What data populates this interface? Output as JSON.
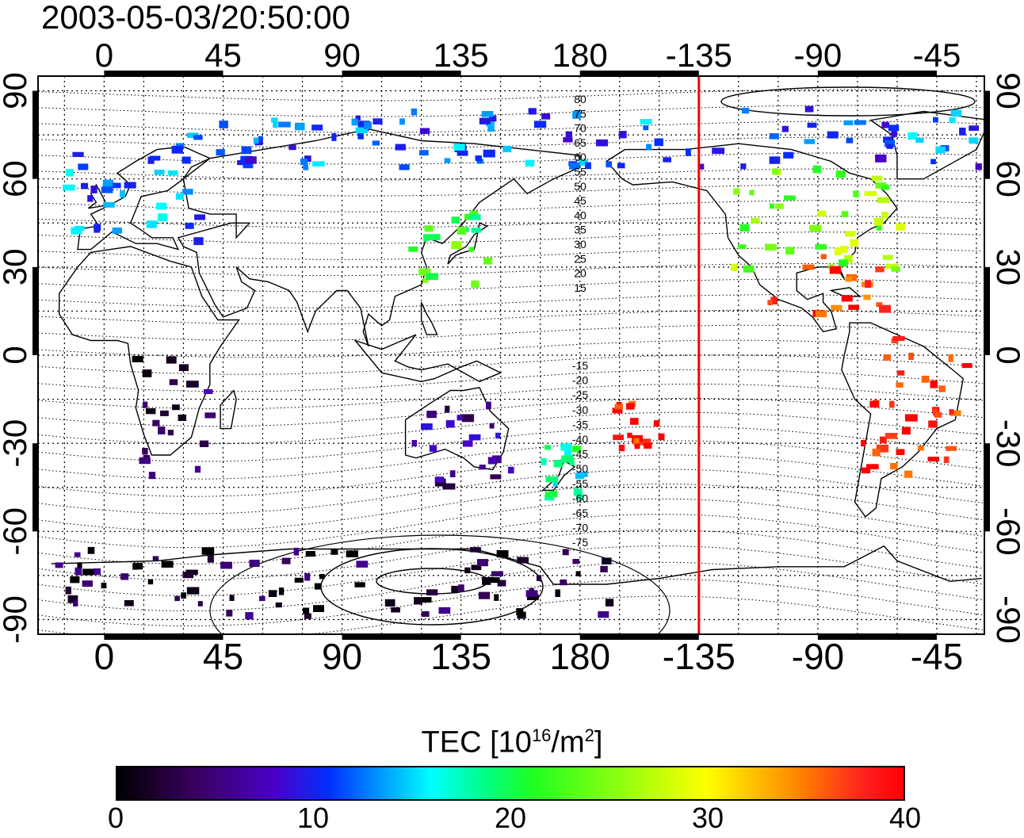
{
  "title": "2003-05-03/20:50:00",
  "map": {
    "lon_ticks": [
      "0",
      "45",
      "90",
      "135",
      "180",
      "-135",
      "-90",
      "-45"
    ],
    "lon_values": [
      0,
      45,
      90,
      135,
      180,
      225,
      270,
      315
    ],
    "lat_ticks": [
      "90",
      "60",
      "30",
      "0",
      "-30",
      "-60",
      "-90"
    ],
    "lat_values": [
      90,
      60,
      30,
      0,
      -30,
      -60,
      -90
    ],
    "lon_range": [
      -25,
      333
    ],
    "lat_range": [
      -95,
      95
    ],
    "terminator_lon": 225,
    "terminator_color": "#ff0000",
    "contour_labels_north": [
      "80",
      "75",
      "70",
      "65",
      "60",
      "55",
      "50",
      "45",
      "40",
      "35",
      "30",
      "25",
      "20",
      "15"
    ],
    "contour_labels_south": [
      "-15",
      "-20",
      "-25",
      "-30",
      "-35",
      "-40",
      "-45",
      "-50",
      "-55",
      "-60",
      "-65",
      "-70",
      "-75"
    ],
    "tec_regions": [
      {
        "region": "arctic",
        "lon": [
          25,
          330
        ],
        "lat": [
          65,
          85
        ],
        "tec": 12
      },
      {
        "region": "europe",
        "lon": [
          -20,
          35
        ],
        "lat": [
          40,
          70
        ],
        "tec": 13
      },
      {
        "region": "north-america",
        "lon": [
          235,
          300
        ],
        "lat": [
          30,
          65
        ],
        "tec": 25
      },
      {
        "region": "north-america-south",
        "lon": [
          245,
          295
        ],
        "lat": [
          15,
          35
        ],
        "tec": 38
      },
      {
        "region": "east-asia",
        "lon": [
          115,
          145
        ],
        "lat": [
          25,
          50
        ],
        "tec": 22
      },
      {
        "region": "south-america",
        "lon": [
          285,
          325
        ],
        "lat": [
          -40,
          10
        ],
        "tec": 39
      },
      {
        "region": "africa-south",
        "lon": [
          10,
          40
        ],
        "lat": [
          -40,
          0
        ],
        "tec": 4
      },
      {
        "region": "australia",
        "lon": [
          115,
          155
        ],
        "lat": [
          -45,
          -15
        ],
        "tec": 6
      },
      {
        "region": "antarctica",
        "lon": [
          -20,
          190
        ],
        "lat": [
          -88,
          -65
        ],
        "tec": 2
      },
      {
        "region": "new-zealand",
        "lon": [
          165,
          180
        ],
        "lat": [
          -50,
          -30
        ],
        "tec": 18
      },
      {
        "region": "pacific-south",
        "lon": [
          185,
          210
        ],
        "lat": [
          -35,
          -15
        ],
        "tec": 39
      }
    ]
  },
  "colorbar": {
    "label_main": "TEC  [10",
    "label_sup1": "16",
    "label_mid": "/m",
    "label_sup2": "2",
    "label_end": "]",
    "range": [
      0,
      40
    ],
    "ticks": [
      "0",
      "10",
      "20",
      "30",
      "40"
    ],
    "tick_values": [
      0,
      10,
      20,
      30,
      40
    ]
  }
}
